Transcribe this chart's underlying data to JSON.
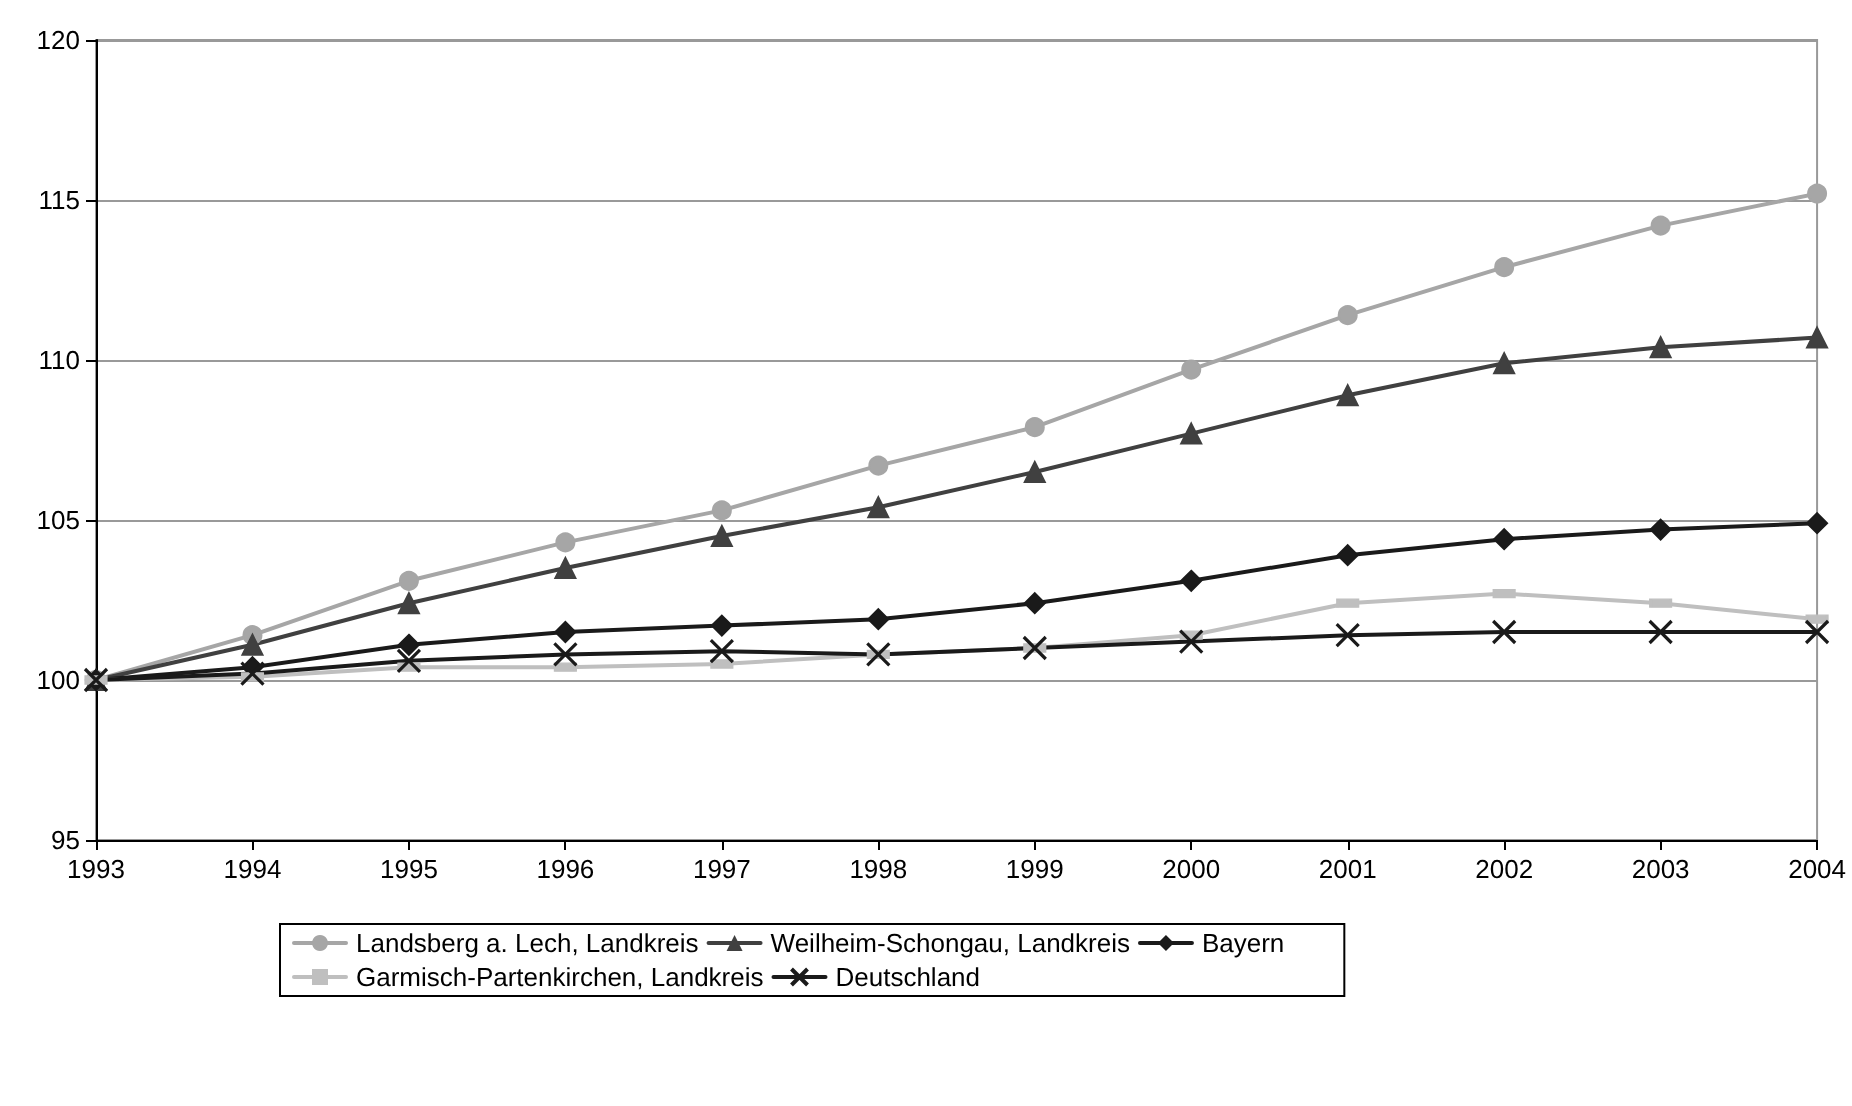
{
  "chart_data": {
    "type": "line",
    "categories": [
      "1993",
      "1994",
      "1995",
      "1996",
      "1997",
      "1998",
      "1999",
      "2000",
      "2001",
      "2002",
      "2003",
      "2004"
    ],
    "ylim": [
      95,
      120
    ],
    "yticks": [
      95,
      100,
      105,
      110,
      115,
      120
    ],
    "grid": "y",
    "legend": "bottom",
    "series": [
      {
        "name": "Landsberg a. Lech, Landkreis",
        "color": "#a6a6a6",
        "marker": "circle",
        "values": [
          100,
          101.4,
          103.1,
          104.3,
          105.3,
          106.7,
          107.9,
          109.7,
          111.4,
          112.9,
          114.2,
          115.2
        ]
      },
      {
        "name": "Weilheim-Schongau, Landkreis",
        "color": "#404040",
        "marker": "triangle",
        "values": [
          100,
          101.1,
          102.4,
          103.5,
          104.5,
          105.4,
          106.5,
          107.7,
          108.9,
          109.9,
          110.4,
          110.7
        ]
      },
      {
        "name": "Bayern",
        "color": "#1a1a1a",
        "marker": "diamond",
        "values": [
          100,
          100.4,
          101.1,
          101.5,
          101.7,
          101.9,
          102.4,
          103.1,
          103.9,
          104.4,
          104.7,
          104.9
        ]
      },
      {
        "name": "Garmisch-Partenkirchen, Landkreis",
        "color": "#bfbfbf",
        "marker": "square",
        "values": [
          100,
          100.1,
          100.4,
          100.4,
          100.5,
          100.8,
          101.0,
          101.4,
          102.4,
          102.7,
          102.4,
          101.9
        ]
      },
      {
        "name": "Deutschland",
        "color": "#1a1a1a",
        "marker": "cross",
        "values": [
          100,
          100.2,
          100.6,
          100.8,
          100.9,
          100.8,
          101.0,
          101.2,
          101.4,
          101.5,
          101.5,
          101.5
        ]
      }
    ]
  }
}
